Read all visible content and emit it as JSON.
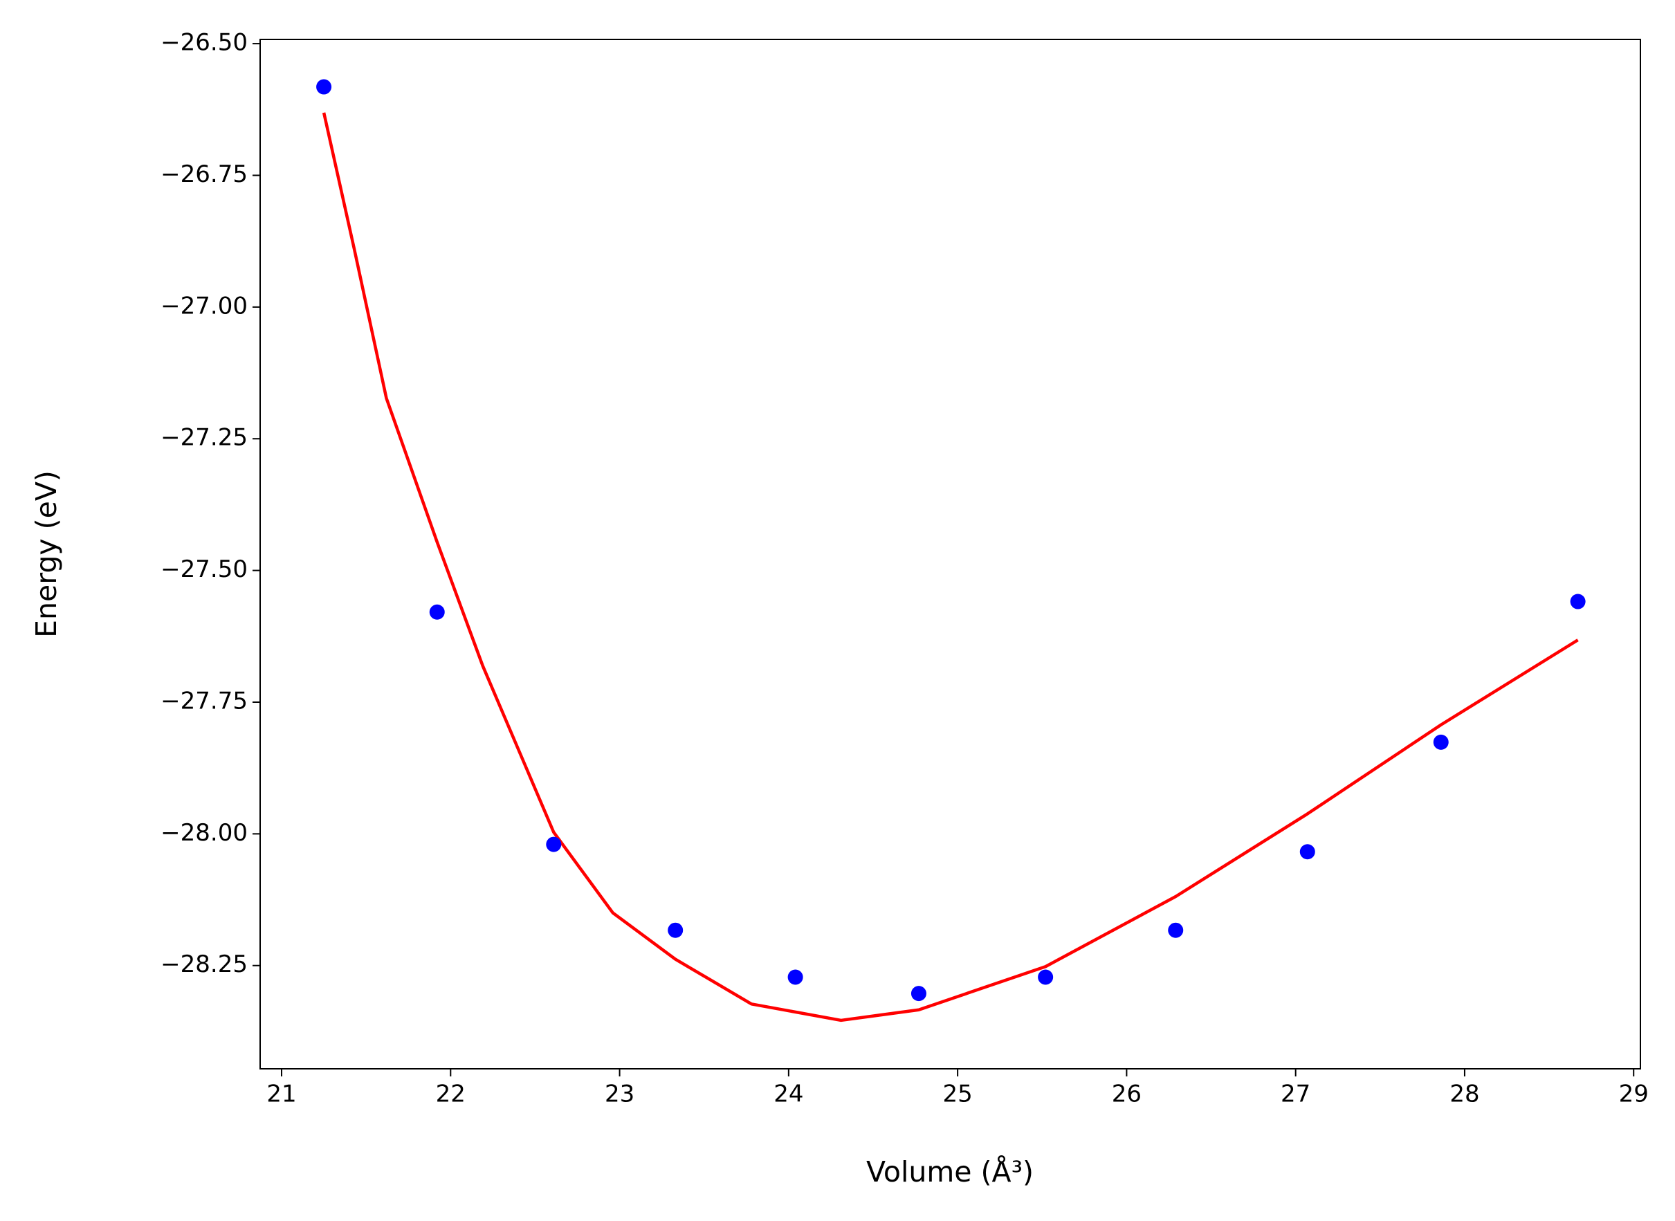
{
  "chart_data": {
    "type": "scatter",
    "xlabel": "Volume (Å³)",
    "ylabel": "Energy (eV)",
    "xlim": [
      20.873,
      29.04
    ],
    "ylim": [
      -28.446,
      -26.492
    ],
    "xticks": [
      21,
      22,
      23,
      24,
      25,
      26,
      27,
      28,
      29
    ],
    "yticks": [
      {
        "value": -26.5,
        "label": "−26.50"
      },
      {
        "value": -26.75,
        "label": "−26.75"
      },
      {
        "value": -27.0,
        "label": "−27.00"
      },
      {
        "value": -27.25,
        "label": "−27.25"
      },
      {
        "value": -27.5,
        "label": "−27.50"
      },
      {
        "value": -27.75,
        "label": "−27.75"
      },
      {
        "value": -28.0,
        "label": "−28.00"
      },
      {
        "value": -28.25,
        "label": "−28.25"
      }
    ],
    "series": [
      {
        "type": "scatter",
        "color": "#0000ff",
        "x": [
          21.25,
          21.92,
          22.61,
          23.33,
          24.04,
          24.77,
          25.52,
          26.29,
          27.07,
          27.86,
          28.67
        ],
        "values": [
          -26.582,
          -27.579,
          -28.02,
          -28.183,
          -28.272,
          -28.303,
          -28.272,
          -28.183,
          -28.034,
          -27.826,
          -27.559
        ]
      },
      {
        "type": "line",
        "color": "#ff0000",
        "x": [
          21.25,
          21.43,
          21.62,
          21.92,
          22.19,
          22.61,
          22.96,
          23.33,
          23.78,
          24.31,
          24.77,
          25.52,
          26.29,
          27.07,
          27.86,
          28.67
        ],
        "values": [
          -26.631,
          -26.89,
          -27.173,
          -27.446,
          -27.681,
          -27.997,
          -28.15,
          -28.238,
          -28.323,
          -28.354,
          -28.334,
          -28.252,
          -28.119,
          -27.962,
          -27.793,
          -27.632
        ]
      }
    ]
  }
}
